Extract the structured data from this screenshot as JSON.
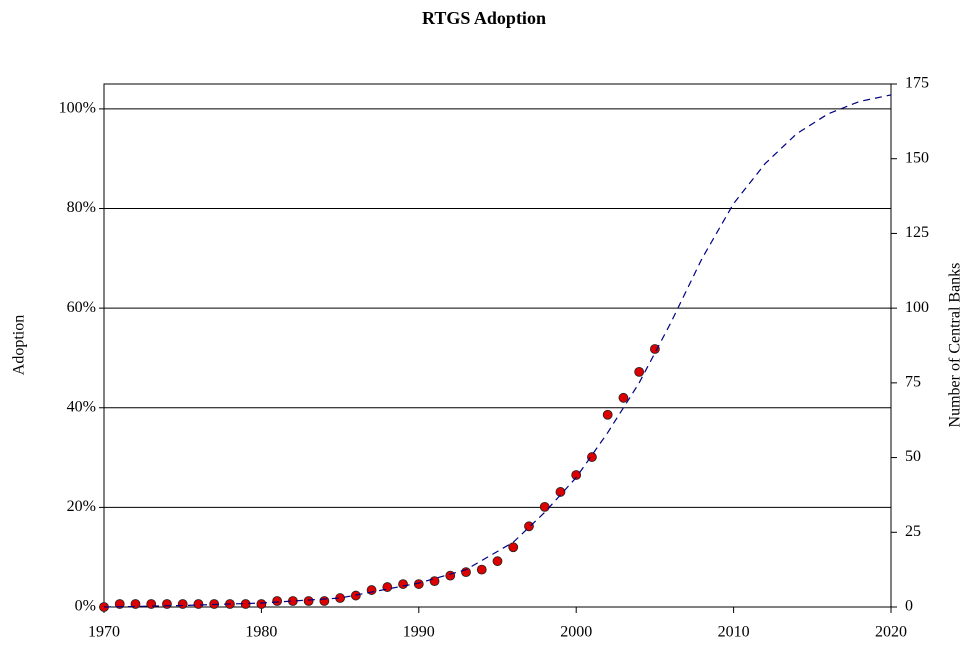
{
  "chart_data": {
    "type": "scatter",
    "title": "RTGS Adoption",
    "y_label": "Adoption",
    "y2_label": "Number of Central Banks",
    "xlim": [
      1970,
      2020
    ],
    "xticks": [
      1970,
      1980,
      1990,
      2000,
      2010,
      2020
    ],
    "ylim": [
      0,
      105
    ],
    "yticks": [
      {
        "value": 0,
        "label": "0%"
      },
      {
        "value": 20,
        "label": "20%"
      },
      {
        "value": 40,
        "label": "40%"
      },
      {
        "value": 60,
        "label": "60%"
      },
      {
        "value": 80,
        "label": "80%"
      },
      {
        "value": 100,
        "label": "100%"
      }
    ],
    "y2lim": [
      0,
      175
    ],
    "y2ticks": [
      0,
      25,
      50,
      75,
      100,
      125,
      150,
      175
    ],
    "grid": true,
    "series": [
      {
        "type": "scatter",
        "color": "#dd0000",
        "x": [
          1970,
          1971,
          1972,
          1973,
          1974,
          1975,
          1976,
          1977,
          1978,
          1979,
          1980,
          1981,
          1982,
          1983,
          1984,
          1985,
          1986,
          1987,
          1988,
          1989,
          1990,
          1991,
          1992,
          1993,
          1994,
          1995,
          1996,
          1997,
          1998,
          1999,
          2000,
          2001,
          2002,
          2003,
          2004,
          2005
        ],
        "values": [
          0,
          0.6,
          0.6,
          0.6,
          0.6,
          0.6,
          0.6,
          0.6,
          0.6,
          0.6,
          0.6,
          1.2,
          1.2,
          1.2,
          1.2,
          1.8,
          2.3,
          3.4,
          4.0,
          4.6,
          4.6,
          5.2,
          6.3,
          7.0,
          7.5,
          9.2,
          12.0,
          16.2,
          20.1,
          23.1,
          26.5,
          30.1,
          38.6,
          42.0,
          47.2,
          51.8
        ]
      },
      {
        "type": "line",
        "color": "#000080",
        "dashed": true,
        "x": [
          1970,
          1975,
          1980,
          1985,
          1990,
          1993,
          1996,
          1998,
          2000,
          2002,
          2004,
          2006,
          2008,
          2010,
          2012,
          2014,
          2016,
          2018,
          2020
        ],
        "values": [
          0,
          0.3,
          0.8,
          1.8,
          4.8,
          7.5,
          13,
          19,
          26,
          35,
          45,
          57,
          70,
          81,
          89,
          95,
          99,
          101.5,
          102.8
        ]
      }
    ]
  }
}
